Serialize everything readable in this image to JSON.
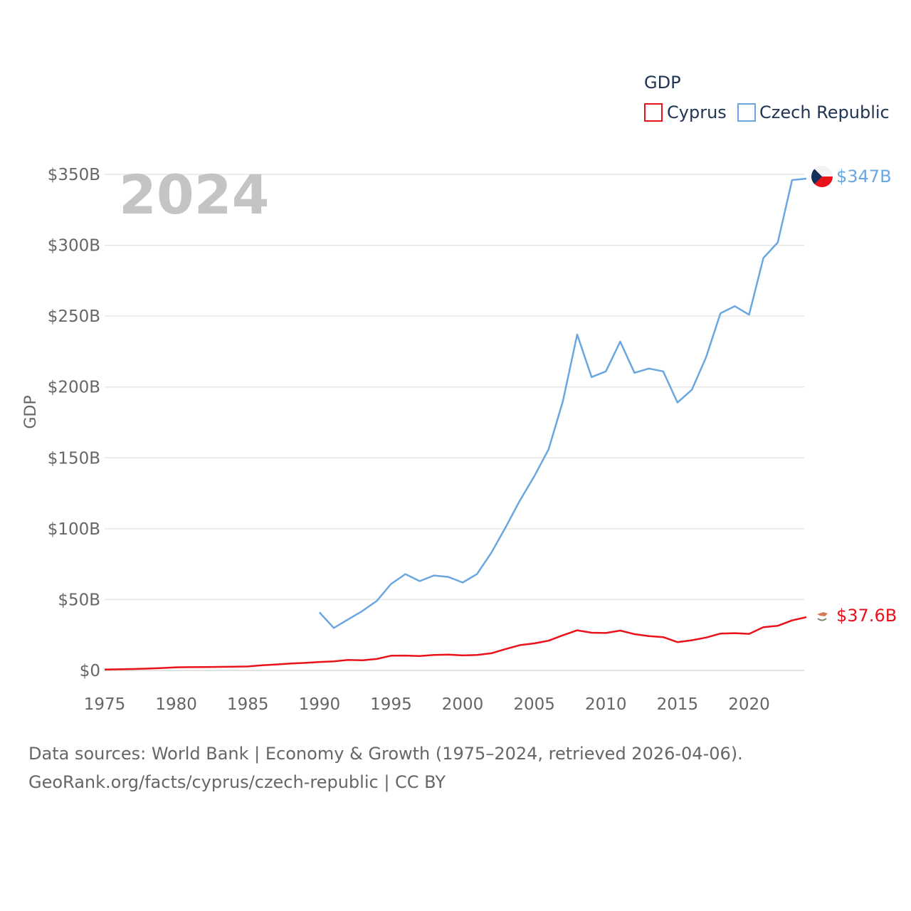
{
  "chart_data": {
    "type": "line",
    "year_label": "2024",
    "ylabel": "GDP",
    "legend_title": "GDP",
    "ylim": [
      0,
      350
    ],
    "yticks": [
      0,
      50,
      100,
      150,
      200,
      250,
      300,
      350
    ],
    "ytick_labels": [
      "$0",
      "$50B",
      "$100B",
      "$150B",
      "$200B",
      "$250B",
      "$300B",
      "$350B"
    ],
    "xlim": [
      1975,
      2024
    ],
    "xticks": [
      1975,
      1980,
      1985,
      1990,
      1995,
      2000,
      2005,
      2010,
      2015,
      2020
    ],
    "xtick_labels": [
      "1975",
      "1980",
      "1985",
      "1990",
      "1995",
      "2000",
      "2005",
      "2010",
      "2015",
      "2020"
    ],
    "series": [
      {
        "name": "Cyprus",
        "color": "#e8121a",
        "end_label": "$37.6B",
        "x": [
          1975,
          1976,
          1977,
          1978,
          1979,
          1980,
          1981,
          1982,
          1983,
          1984,
          1985,
          1986,
          1987,
          1988,
          1989,
          1990,
          1991,
          1992,
          1993,
          1994,
          1995,
          1996,
          1997,
          1998,
          1999,
          2000,
          2001,
          2002,
          2003,
          2004,
          2005,
          2006,
          2007,
          2008,
          2009,
          2010,
          2011,
          2012,
          2013,
          2014,
          2015,
          2016,
          2017,
          2018,
          2019,
          2020,
          2021,
          2022,
          2023,
          2024
        ],
        "values": [
          0.6,
          0.8,
          1.0,
          1.3,
          1.7,
          2.2,
          2.3,
          2.4,
          2.5,
          2.6,
          2.8,
          3.6,
          4.2,
          4.9,
          5.3,
          6.0,
          6.4,
          7.4,
          7.2,
          8.1,
          10.4,
          10.5,
          10.2,
          10.9,
          11.2,
          10.6,
          10.9,
          12.1,
          15.1,
          17.9,
          19.1,
          21.0,
          24.8,
          28.3,
          26.6,
          26.4,
          28.1,
          25.6,
          24.2,
          23.5,
          20.0,
          21.3,
          23.2,
          26.0,
          26.3,
          25.8,
          30.5,
          31.5,
          35.3,
          37.6
        ]
      },
      {
        "name": "Czech Republic",
        "color": "#6aa7e1",
        "end_label": "$347B",
        "x": [
          1990,
          1991,
          1992,
          1993,
          1994,
          1995,
          1996,
          1997,
          1998,
          1999,
          2000,
          2001,
          2002,
          2003,
          2004,
          2005,
          2006,
          2007,
          2008,
          2009,
          2010,
          2011,
          2012,
          2013,
          2014,
          2015,
          2016,
          2017,
          2018,
          2019,
          2020,
          2021,
          2022,
          2023,
          2024
        ],
        "values": [
          41,
          30,
          36,
          42,
          49,
          61,
          68,
          63,
          67,
          66,
          62,
          68,
          83,
          101,
          120,
          137,
          156,
          190,
          237,
          207,
          211,
          232,
          210,
          213,
          211,
          189,
          198,
          221,
          252,
          257,
          251,
          291,
          302,
          346,
          347
        ]
      }
    ]
  },
  "footer": {
    "line1": "Data sources: World Bank | Economy & Growth (1975–2024, retrieved 2026-04-06).",
    "line2": "GeoRank.org/facts/cyprus/czech-republic | CC BY"
  }
}
